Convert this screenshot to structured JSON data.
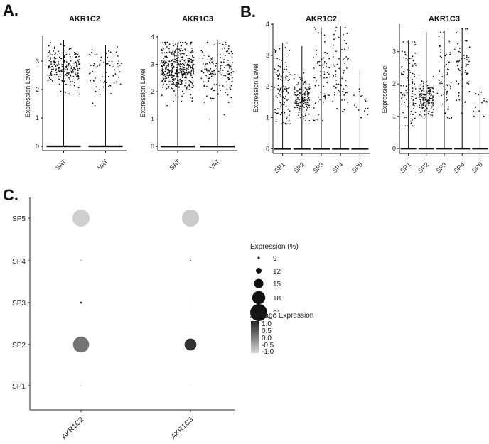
{
  "panels": {
    "a": "A.",
    "b": "B.",
    "c": "C."
  },
  "chart_data": [
    {
      "id": "A1",
      "type": "violin-jitter",
      "title": "AKR1C2",
      "ylabel": "Expression Level",
      "ylim": [
        -0.15,
        3.9
      ],
      "yticks": [
        0,
        1,
        2,
        3
      ],
      "categories": [
        "SAT",
        "VAT"
      ],
      "violin_max": [
        3.75,
        3.55
      ],
      "jitter": [
        {
          "n": 230,
          "center": 2.8,
          "spread": 0.35,
          "min": 0.9,
          "max": 3.7
        },
        {
          "n": 70,
          "center": 2.6,
          "spread": 0.6,
          "min": 1.1,
          "max": 3.5
        }
      ]
    },
    {
      "id": "A2",
      "type": "violin-jitter",
      "title": "AKR1C3",
      "ylabel": "Expression Level",
      "ylim": [
        -0.15,
        4.05
      ],
      "yticks": [
        0,
        1,
        2,
        3,
        4
      ],
      "categories": [
        "SAT",
        "VAT"
      ],
      "violin_max": [
        3.8,
        3.9
      ],
      "jitter": [
        {
          "n": 420,
          "center": 2.8,
          "spread": 0.45,
          "min": 0.6,
          "max": 3.8
        },
        {
          "n": 150,
          "center": 2.8,
          "spread": 0.55,
          "min": 1.0,
          "max": 3.8
        }
      ]
    },
    {
      "id": "B1",
      "type": "violin-jitter",
      "title": "AKR1C2",
      "ylabel": "Expression Level",
      "ylim": [
        -0.15,
        4.05
      ],
      "yticks": [
        0,
        1,
        2,
        3,
        4
      ],
      "categories": [
        "SP1",
        "SP2",
        "SP3",
        "SP4",
        "SP5"
      ],
      "violin_max": [
        3.4,
        3.3,
        3.9,
        3.95,
        2.5
      ],
      "jitter": [
        {
          "n": 110,
          "center": 2.0,
          "spread": 0.7,
          "min": 0.8,
          "max": 3.4
        },
        {
          "n": 140,
          "center": 1.6,
          "spread": 0.3,
          "min": 0.9,
          "max": 3.3
        },
        {
          "n": 70,
          "center": 2.1,
          "spread": 0.8,
          "min": 0.9,
          "max": 3.9
        },
        {
          "n": 65,
          "center": 2.5,
          "spread": 0.7,
          "min": 1.2,
          "max": 3.9
        },
        {
          "n": 16,
          "center": 1.4,
          "spread": 0.3,
          "min": 1.0,
          "max": 2.5
        }
      ]
    },
    {
      "id": "B2",
      "type": "violin-jitter",
      "title": "AKR1C3",
      "ylabel": "Expression Level",
      "ylim": [
        -0.15,
        3.85
      ],
      "yticks": [
        0,
        1,
        2,
        3
      ],
      "categories": [
        "SP1",
        "SP2",
        "SP3",
        "SP4",
        "SP5"
      ],
      "violin_max": [
        3.35,
        3.6,
        3.65,
        3.7,
        1.8
      ],
      "jitter": [
        {
          "n": 110,
          "center": 2.0,
          "spread": 0.7,
          "min": 0.7,
          "max": 3.3
        },
        {
          "n": 150,
          "center": 1.55,
          "spread": 0.3,
          "min": 0.9,
          "max": 3.5
        },
        {
          "n": 60,
          "center": 2.2,
          "spread": 0.8,
          "min": 0.8,
          "max": 3.6
        },
        {
          "n": 60,
          "center": 2.5,
          "spread": 0.7,
          "min": 1.1,
          "max": 3.7
        },
        {
          "n": 14,
          "center": 1.35,
          "spread": 0.25,
          "min": 1.0,
          "max": 1.8
        }
      ]
    },
    {
      "id": "C",
      "type": "dotplot",
      "x_categories": [
        "AKR1C2",
        "AKR1C3"
      ],
      "y_categories": [
        "SP1",
        "SP2",
        "SP3",
        "SP4",
        "SP5"
      ],
      "points": [
        {
          "gene": "AKR1C2",
          "cluster": "SP1",
          "pct": 8.0,
          "avg": -0.5
        },
        {
          "gene": "AKR1C2",
          "cluster": "SP2",
          "pct": 20.2,
          "avg": 0.1
        },
        {
          "gene": "AKR1C2",
          "cluster": "SP3",
          "pct": 8.8,
          "avg": 0.85
        },
        {
          "gene": "AKR1C2",
          "cluster": "SP4",
          "pct": 7.8,
          "avg": 1.0
        },
        {
          "gene": "AKR1C2",
          "cluster": "SP5",
          "pct": 21.0,
          "avg": -0.9
        },
        {
          "gene": "AKR1C3",
          "cluster": "SP1",
          "pct": 7.2,
          "avg": -0.95
        },
        {
          "gene": "AKR1C3",
          "cluster": "SP2",
          "pct": 17.0,
          "avg": 0.8
        },
        {
          "gene": "AKR1C3",
          "cluster": "SP3",
          "pct": 6.9,
          "avg": -0.95
        },
        {
          "gene": "AKR1C3",
          "cluster": "SP4",
          "pct": 8.2,
          "avg": 0.95
        },
        {
          "gene": "AKR1C3",
          "cluster": "SP5",
          "pct": 21.0,
          "avg": -0.85
        }
      ],
      "size_legend": {
        "title": "Expression (%)",
        "values": [
          9,
          12,
          15,
          18,
          21
        ]
      },
      "color_legend": {
        "title": "Average Expression",
        "labels": [
          "1.0",
          "0.5",
          "0.0",
          "-0.5",
          "-1.0"
        ],
        "range": [
          -1.0,
          1.0
        ],
        "low_color": "#d8d8d8",
        "high_color": "#202020"
      }
    }
  ]
}
